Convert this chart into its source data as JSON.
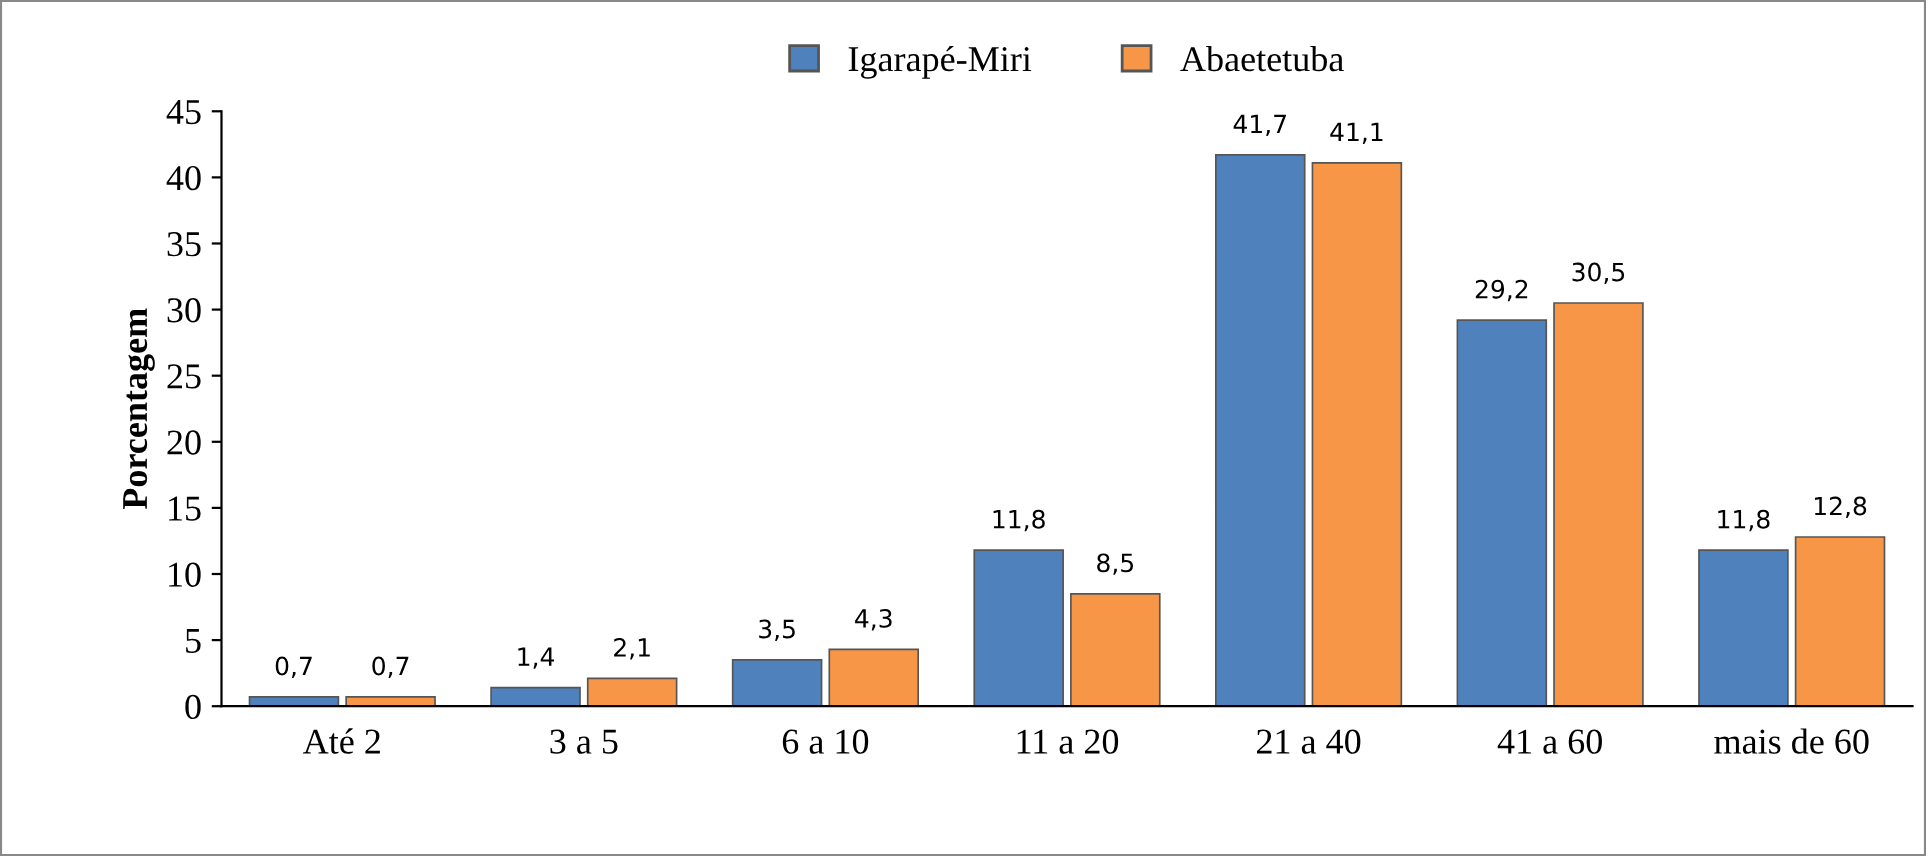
{
  "chart_data": {
    "type": "bar",
    "ylabel": "Porcentagem",
    "categories": [
      "Até 2",
      "3 a 5",
      "6 a 10",
      "11 a 20",
      "21 a 40",
      "41 a 60",
      "mais de 60"
    ],
    "series": [
      {
        "name": "Igarapé-Miri",
        "color": "#4f81bd",
        "values": [
          0.7,
          1.4,
          3.5,
          11.8,
          41.7,
          29.2,
          11.8
        ],
        "value_labels": [
          "0,7",
          "1,4",
          "3,5",
          "11,8",
          "41,7",
          "29,2",
          "11,8"
        ]
      },
      {
        "name": "Abaetetuba",
        "color": "#f79646",
        "values": [
          0.7,
          2.1,
          4.3,
          8.5,
          41.1,
          30.5,
          12.8
        ],
        "value_labels": [
          "0,7",
          "2,1",
          "4,3",
          "8,5",
          "41,1",
          "30,5",
          "12,8"
        ]
      }
    ],
    "ylim": [
      0,
      45
    ],
    "yticks": [
      0,
      5,
      10,
      15,
      20,
      25,
      30,
      35,
      40,
      45
    ],
    "grid": false,
    "legend": "top"
  }
}
